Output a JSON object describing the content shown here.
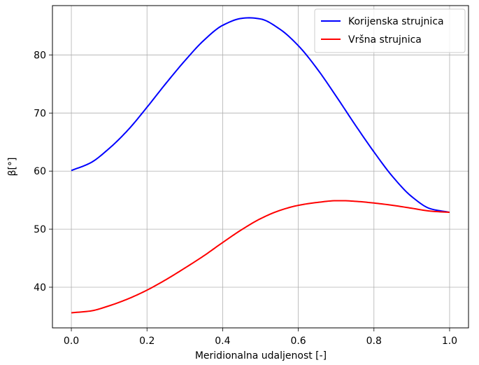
{
  "chart_data": {
    "type": "line",
    "xlabel": "Meridionalna udaljenost [-]",
    "ylabel": "β[°]",
    "xlim": [
      -0.05,
      1.05
    ],
    "ylim": [
      33.0,
      88.5
    ],
    "grid": true,
    "legend_position": "top-right",
    "x_ticks": [
      0.0,
      0.2,
      0.4,
      0.6,
      0.8,
      1.0
    ],
    "x_tick_labels": [
      "0.0",
      "0.2",
      "0.4",
      "0.6",
      "0.8",
      "1.0"
    ],
    "y_ticks": [
      40,
      50,
      60,
      70,
      80
    ],
    "y_tick_labels": [
      "40",
      "50",
      "60",
      "70",
      "80"
    ],
    "series": [
      {
        "name": "Korijenska strujnica",
        "color": "#0000ff",
        "x": [
          0.0,
          0.05,
          0.1,
          0.15,
          0.2,
          0.25,
          0.3,
          0.35,
          0.4,
          0.45,
          0.47,
          0.5,
          0.55,
          0.6,
          0.65,
          0.7,
          0.75,
          0.8,
          0.85,
          0.9,
          0.95,
          1.0
        ],
        "y": [
          60.1,
          61.4,
          63.9,
          67.1,
          71.0,
          75.1,
          79.0,
          82.5,
          85.1,
          86.3,
          86.4,
          86.2,
          84.5,
          81.6,
          77.6,
          72.9,
          68.0,
          63.3,
          59.0,
          55.6,
          53.5,
          52.9
        ]
      },
      {
        "name": "Vršna strujnica",
        "color": "#ff0000",
        "x": [
          0.0,
          0.05,
          0.1,
          0.15,
          0.2,
          0.25,
          0.3,
          0.35,
          0.4,
          0.45,
          0.5,
          0.55,
          0.6,
          0.65,
          0.7,
          0.72,
          0.75,
          0.8,
          0.85,
          0.9,
          0.95,
          1.0
        ],
        "y": [
          35.6,
          35.9,
          36.8,
          38.0,
          39.5,
          41.3,
          43.3,
          45.4,
          47.7,
          49.9,
          51.8,
          53.2,
          54.1,
          54.6,
          54.9,
          54.9,
          54.8,
          54.5,
          54.1,
          53.6,
          53.1,
          52.9
        ]
      }
    ]
  }
}
